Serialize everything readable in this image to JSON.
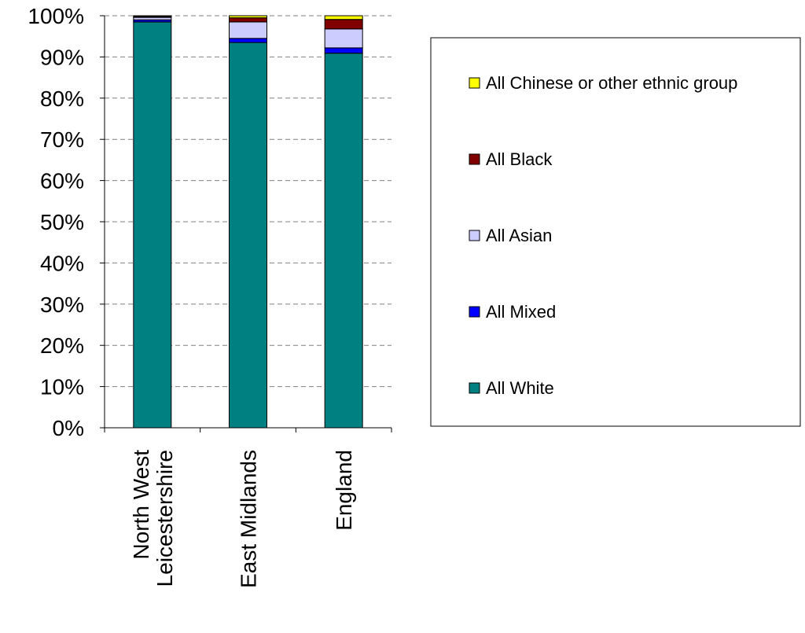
{
  "chart_data": {
    "type": "bar",
    "stacked": true,
    "percent_stacked": true,
    "categories": [
      [
        "North West",
        "Leicestershire"
      ],
      [
        "East Midlands"
      ],
      [
        "England"
      ]
    ],
    "series": [
      {
        "name": "All White",
        "color": "#008080",
        "values": [
          98.5,
          93.5,
          90.9
        ]
      },
      {
        "name": "All Mixed",
        "color": "#0000FF",
        "values": [
          0.5,
          1.0,
          1.3
        ]
      },
      {
        "name": "All Asian",
        "color": "#CCCCFF",
        "values": [
          0.6,
          4.0,
          4.6
        ]
      },
      {
        "name": "All Black",
        "color": "#800000",
        "values": [
          0.2,
          1.0,
          2.3
        ]
      },
      {
        "name": "All Chinese or other ethnic group",
        "color": "#FFFF00",
        "values": [
          0.2,
          0.5,
          0.9
        ]
      }
    ],
    "y_ticks": [
      "0%",
      "10%",
      "20%",
      "30%",
      "40%",
      "50%",
      "60%",
      "70%",
      "80%",
      "90%",
      "100%"
    ],
    "ylim": [
      0,
      100
    ],
    "grid": "horizontal-dashed",
    "legend_position": "right",
    "legend_order": [
      "All Chinese or other ethnic group",
      "All Black",
      "All Asian",
      "All Mixed",
      "All White"
    ]
  }
}
